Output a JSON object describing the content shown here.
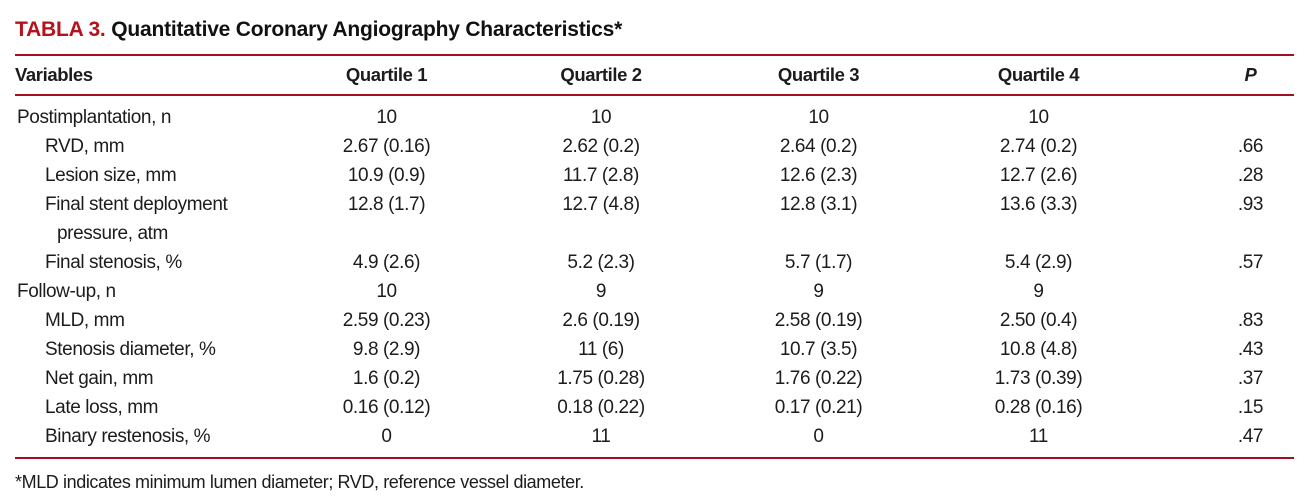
{
  "title": {
    "label": "TABLA 3.",
    "text": "Quantitative Coronary Angiography Characteristics*"
  },
  "colors": {
    "title_red": "#b5121b",
    "rule_red": "#a50d23",
    "text": "#1c1c1c",
    "background": "#ffffff"
  },
  "table": {
    "columns": [
      {
        "label": "Variables",
        "align": "left"
      },
      {
        "label": "Quartile 1",
        "align": "center"
      },
      {
        "label": "Quartile 2",
        "align": "center"
      },
      {
        "label": "Quartile 3",
        "align": "center"
      },
      {
        "label": "Quartile 4",
        "align": "center"
      },
      {
        "label": "P",
        "align": "center",
        "italic": true
      }
    ],
    "rows": [
      {
        "label": "Postimplantation, n",
        "indent": 0,
        "values": [
          "10",
          "10",
          "10",
          "10"
        ],
        "p": ""
      },
      {
        "label": "RVD, mm",
        "indent": 1,
        "values": [
          "2.67 (0.16)",
          "2.62 (0.2)",
          "2.64 (0.2)",
          "2.74 (0.2)"
        ],
        "p": ".66"
      },
      {
        "label": "Lesion size, mm",
        "indent": 1,
        "values": [
          "10.9 (0.9)",
          "11.7 (2.8)",
          "12.6 (2.3)",
          "12.7 (2.6)"
        ],
        "p": ".28"
      },
      {
        "label": "Final stent deployment",
        "label2": "pressure, atm",
        "indent": 1,
        "values": [
          "12.8 (1.7)",
          "12.7 (4.8)",
          "12.8 (3.1)",
          "13.6 (3.3)"
        ],
        "p": ".93"
      },
      {
        "label": "Final stenosis, %",
        "indent": 1,
        "values": [
          "4.9 (2.6)",
          "5.2 (2.3)",
          "5.7 (1.7)",
          "5.4 (2.9)"
        ],
        "p": ".57"
      },
      {
        "label": "Follow-up, n",
        "indent": 0,
        "values": [
          "10",
          "9",
          "9",
          "9"
        ],
        "p": ""
      },
      {
        "label": "MLD, mm",
        "indent": 1,
        "values": [
          "2.59 (0.23)",
          "2.6 (0.19)",
          "2.58 (0.19)",
          "2.50 (0.4)"
        ],
        "p": ".83"
      },
      {
        "label": "Stenosis diameter, %",
        "indent": 1,
        "values": [
          "9.8 (2.9)",
          "11 (6)",
          "10.7 (3.5)",
          "10.8 (4.8)"
        ],
        "p": ".43"
      },
      {
        "label": "Net gain, mm",
        "indent": 1,
        "values": [
          "1.6 (0.2)",
          "1.75 (0.28)",
          "1.76 (0.22)",
          "1.73 (0.39)"
        ],
        "p": ".37"
      },
      {
        "label": "Late loss, mm",
        "indent": 1,
        "values": [
          "0.16 (0.12)",
          "0.18 (0.22)",
          "0.17 (0.21)",
          "0.28 (0.16)"
        ],
        "p": ".15"
      },
      {
        "label": "Binary restenosis, %",
        "indent": 1,
        "values": [
          "0",
          "11",
          "0",
          "11"
        ],
        "p": ".47"
      }
    ]
  },
  "footnote": "*MLD indicates minimum lumen diameter; RVD, reference vessel diameter."
}
